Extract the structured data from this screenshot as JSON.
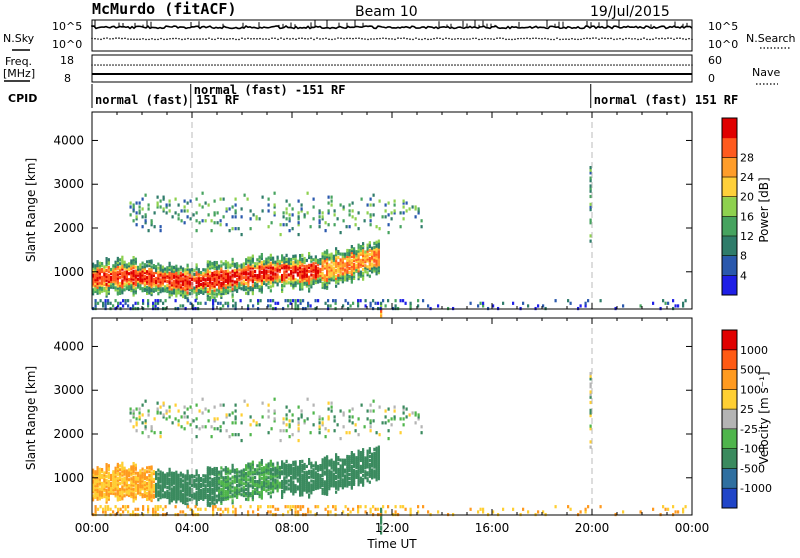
{
  "header": {
    "title": "McMurdo (fitACF)",
    "beam": "Beam 10",
    "date": "19/Jul/2015"
  },
  "nsky_panel": {
    "label": "N.Sky",
    "yticks_left": [
      "10^5",
      "10^0"
    ],
    "yticks_right": [
      "10^5",
      "10^0"
    ],
    "legend": "N.Search"
  },
  "freq_panel": {
    "label_line1": "Freq.",
    "label_line2": "[MHz]",
    "yticks_left": [
      "18",
      "8"
    ],
    "yticks_right": [
      "60",
      "0"
    ],
    "legend": "Nave"
  },
  "cpid_panel": {
    "label": "CPID",
    "segments": [
      {
        "start": 0.0,
        "text": "normal (fast) 151 RF"
      },
      {
        "start": 3.95,
        "text": "normal (fast) -151 RF"
      },
      {
        "start": 19.95,
        "text": "normal (fast) 151 RF"
      }
    ]
  },
  "chart_data": [
    {
      "type": "heatmap",
      "name": "power",
      "ylabel": "Slant Range [km]",
      "ylim": [
        150,
        4650
      ],
      "yticks": [
        "1000",
        "2000",
        "3000",
        "4000"
      ],
      "xlim": [
        0,
        24
      ],
      "colorbar": {
        "label": "Power [dB]",
        "ticks": [
          "4",
          "8",
          "12",
          "16",
          "20",
          "24",
          "28"
        ],
        "colors": [
          "#1f1fe6",
          "#2a58ad",
          "#2f7c6a",
          "#46a35f",
          "#8ed14f",
          "#ffd03a",
          "#ff9d2a",
          "#ff5a1e",
          "#e00000"
        ]
      }
    },
    {
      "type": "heatmap",
      "name": "velocity",
      "ylabel": "Slant Range [km]",
      "ylim": [
        150,
        4650
      ],
      "yticks": [
        "1000",
        "2000",
        "3000",
        "4000"
      ],
      "xlim": [
        0,
        24
      ],
      "xticks": [
        "00:00",
        "04:00",
        "08:00",
        "12:00",
        "16:00",
        "20:00",
        "00:00"
      ],
      "xlabel": "Time UT",
      "colorbar": {
        "label": "Velocity [m s⁻¹]",
        "ticks": [
          "1000",
          "500",
          "100",
          "25",
          "-25",
          "-100",
          "-500",
          "-1000"
        ],
        "colors": [
          "#2045c8",
          "#2f6fa0",
          "#3a8a5e",
          "#4fb54b",
          "#b4b4b4",
          "#ffcf33",
          "#ff9a1f",
          "#ff5a14",
          "#e00000"
        ]
      }
    }
  ]
}
